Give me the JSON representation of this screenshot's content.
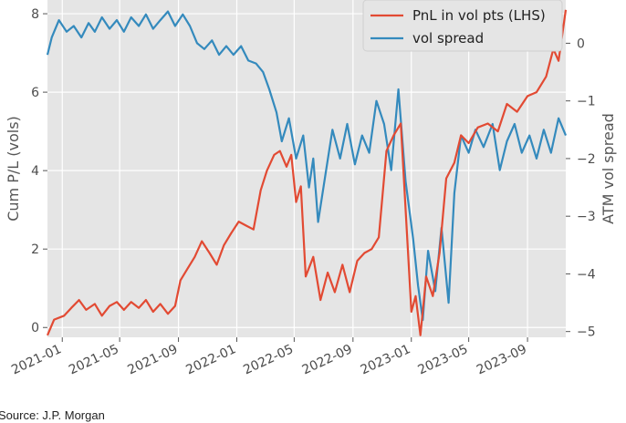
{
  "source": "Source: J.P. Morgan",
  "colors": {
    "pnl": "#e24a33",
    "spread": "#348abd",
    "panel": "#e5e5e5",
    "grid": "#ffffff"
  },
  "chart_data": {
    "type": "line",
    "x_tick_labels": [
      "2021-01",
      "2021-05",
      "2021-09",
      "2022-01",
      "2022-05",
      "2022-09",
      "2023-01",
      "2023-05",
      "2023-09"
    ],
    "x_ticks": [
      "2021-01-01",
      "2021-05-01",
      "2021-09-01",
      "2022-01-01",
      "2022-05-01",
      "2022-09-01",
      "2023-01-01",
      "2023-05-01",
      "2023-09-01"
    ],
    "xlim": [
      "2020-12-01",
      "2023-11-20"
    ],
    "ylabel": "Cum P/L (vols)",
    "ylabel_right": "ATM vol spread",
    "ylim": [
      -0.25,
      8.35
    ],
    "ylim_right": [
      -5.1,
      0.75
    ],
    "yticks": [
      "0",
      "2",
      "4",
      "6",
      "8"
    ],
    "yticks_right": [
      "0",
      "−1",
      "−2",
      "−3",
      "−4",
      "−5"
    ],
    "grid": true,
    "legend_position": "top-right",
    "series": [
      {
        "name": "PnL in vol pts (LHS)",
        "axis": "left",
        "color": "#e24a33",
        "points": [
          [
            "2020-12-01",
            -0.2
          ],
          [
            "2020-12-15",
            0.2
          ],
          [
            "2021-01-05",
            0.3
          ],
          [
            "2021-01-20",
            0.5
          ],
          [
            "2021-02-05",
            0.7
          ],
          [
            "2021-02-20",
            0.45
          ],
          [
            "2021-03-10",
            0.6
          ],
          [
            "2021-03-25",
            0.3
          ],
          [
            "2021-04-10",
            0.55
          ],
          [
            "2021-04-25",
            0.65
          ],
          [
            "2021-05-10",
            0.45
          ],
          [
            "2021-05-25",
            0.65
          ],
          [
            "2021-06-10",
            0.5
          ],
          [
            "2021-06-25",
            0.7
          ],
          [
            "2021-07-10",
            0.4
          ],
          [
            "2021-07-25",
            0.6
          ],
          [
            "2021-08-10",
            0.35
          ],
          [
            "2021-08-25",
            0.55
          ],
          [
            "2021-09-05",
            1.2
          ],
          [
            "2021-09-20",
            1.5
          ],
          [
            "2021-10-05",
            1.8
          ],
          [
            "2021-10-20",
            2.2
          ],
          [
            "2021-11-05",
            1.9
          ],
          [
            "2021-11-20",
            1.6
          ],
          [
            "2021-12-05",
            2.1
          ],
          [
            "2021-12-20",
            2.4
          ],
          [
            "2022-01-05",
            2.7
          ],
          [
            "2022-01-20",
            2.6
          ],
          [
            "2022-02-05",
            2.5
          ],
          [
            "2022-02-20",
            3.5
          ],
          [
            "2022-03-05",
            4.0
          ],
          [
            "2022-03-20",
            4.4
          ],
          [
            "2022-04-01",
            4.5
          ],
          [
            "2022-04-15",
            4.1
          ],
          [
            "2022-04-25",
            4.4
          ],
          [
            "2022-05-05",
            3.2
          ],
          [
            "2022-05-15",
            3.6
          ],
          [
            "2022-05-25",
            1.3
          ],
          [
            "2022-06-10",
            1.8
          ],
          [
            "2022-06-25",
            0.7
          ],
          [
            "2022-07-10",
            1.4
          ],
          [
            "2022-07-25",
            0.9
          ],
          [
            "2022-08-10",
            1.6
          ],
          [
            "2022-08-25",
            0.9
          ],
          [
            "2022-09-10",
            1.7
          ],
          [
            "2022-09-25",
            1.9
          ],
          [
            "2022-10-10",
            2.0
          ],
          [
            "2022-10-25",
            2.3
          ],
          [
            "2022-11-10",
            4.5
          ],
          [
            "2022-11-25",
            4.9
          ],
          [
            "2022-12-10",
            5.2
          ],
          [
            "2022-12-20",
            3.0
          ],
          [
            "2023-01-01",
            0.4
          ],
          [
            "2023-01-10",
            0.8
          ],
          [
            "2023-01-20",
            -0.2
          ],
          [
            "2023-02-01",
            1.3
          ],
          [
            "2023-02-15",
            0.8
          ],
          [
            "2023-03-01",
            1.9
          ],
          [
            "2023-03-15",
            3.8
          ],
          [
            "2023-04-01",
            4.2
          ],
          [
            "2023-04-15",
            4.9
          ],
          [
            "2023-05-01",
            4.7
          ],
          [
            "2023-05-20",
            5.1
          ],
          [
            "2023-06-10",
            5.2
          ],
          [
            "2023-07-01",
            5.0
          ],
          [
            "2023-07-20",
            5.7
          ],
          [
            "2023-08-10",
            5.5
          ],
          [
            "2023-09-01",
            5.9
          ],
          [
            "2023-09-20",
            6.0
          ],
          [
            "2023-10-10",
            6.4
          ],
          [
            "2023-10-25",
            7.1
          ],
          [
            "2023-11-05",
            6.8
          ],
          [
            "2023-11-20",
            8.1
          ]
        ]
      },
      {
        "name": "vol spread",
        "axis": "right",
        "color": "#348abd",
        "points": [
          [
            "2020-12-01",
            -0.2
          ],
          [
            "2020-12-10",
            0.1
          ],
          [
            "2020-12-25",
            0.4
          ],
          [
            "2021-01-10",
            0.2
          ],
          [
            "2021-01-25",
            0.3
          ],
          [
            "2021-02-10",
            0.1
          ],
          [
            "2021-02-25",
            0.35
          ],
          [
            "2021-03-10",
            0.2
          ],
          [
            "2021-03-25",
            0.45
          ],
          [
            "2021-04-10",
            0.25
          ],
          [
            "2021-04-25",
            0.4
          ],
          [
            "2021-05-10",
            0.2
          ],
          [
            "2021-05-25",
            0.45
          ],
          [
            "2021-06-10",
            0.3
          ],
          [
            "2021-06-25",
            0.5
          ],
          [
            "2021-07-10",
            0.25
          ],
          [
            "2021-07-25",
            0.4
          ],
          [
            "2021-08-10",
            0.55
          ],
          [
            "2021-08-25",
            0.3
          ],
          [
            "2021-09-10",
            0.5
          ],
          [
            "2021-09-25",
            0.3
          ],
          [
            "2021-10-10",
            0.0
          ],
          [
            "2021-10-25",
            -0.1
          ],
          [
            "2021-11-10",
            0.05
          ],
          [
            "2021-11-25",
            -0.2
          ],
          [
            "2021-12-10",
            -0.05
          ],
          [
            "2021-12-25",
            -0.2
          ],
          [
            "2022-01-10",
            -0.05
          ],
          [
            "2022-01-25",
            -0.3
          ],
          [
            "2022-02-10",
            -0.35
          ],
          [
            "2022-02-25",
            -0.5
          ],
          [
            "2022-03-10",
            -0.8
          ],
          [
            "2022-03-25",
            -1.2
          ],
          [
            "2022-04-05",
            -1.7
          ],
          [
            "2022-04-20",
            -1.3
          ],
          [
            "2022-05-05",
            -2.0
          ],
          [
            "2022-05-20",
            -1.6
          ],
          [
            "2022-06-01",
            -2.5
          ],
          [
            "2022-06-10",
            -2.0
          ],
          [
            "2022-06-20",
            -3.1
          ],
          [
            "2022-07-05",
            -2.3
          ],
          [
            "2022-07-20",
            -1.5
          ],
          [
            "2022-08-05",
            -2.0
          ],
          [
            "2022-08-20",
            -1.4
          ],
          [
            "2022-09-05",
            -2.1
          ],
          [
            "2022-09-20",
            -1.6
          ],
          [
            "2022-10-05",
            -1.9
          ],
          [
            "2022-10-20",
            -1.0
          ],
          [
            "2022-11-05",
            -1.4
          ],
          [
            "2022-11-20",
            -2.2
          ],
          [
            "2022-12-05",
            -0.8
          ],
          [
            "2022-12-20",
            -2.4
          ],
          [
            "2023-01-05",
            -3.4
          ],
          [
            "2023-01-15",
            -4.2
          ],
          [
            "2023-01-25",
            -4.8
          ],
          [
            "2023-02-05",
            -3.6
          ],
          [
            "2023-02-20",
            -4.3
          ],
          [
            "2023-03-05",
            -3.2
          ],
          [
            "2023-03-20",
            -4.5
          ],
          [
            "2023-04-01",
            -2.6
          ],
          [
            "2023-04-15",
            -1.6
          ],
          [
            "2023-05-01",
            -1.9
          ],
          [
            "2023-05-15",
            -1.5
          ],
          [
            "2023-06-01",
            -1.8
          ],
          [
            "2023-06-20",
            -1.4
          ],
          [
            "2023-07-05",
            -2.2
          ],
          [
            "2023-07-20",
            -1.7
          ],
          [
            "2023-08-05",
            -1.4
          ],
          [
            "2023-08-20",
            -1.9
          ],
          [
            "2023-09-05",
            -1.6
          ],
          [
            "2023-09-20",
            -2.0
          ],
          [
            "2023-10-05",
            -1.5
          ],
          [
            "2023-10-20",
            -1.9
          ],
          [
            "2023-11-05",
            -1.3
          ],
          [
            "2023-11-20",
            -1.6
          ]
        ]
      }
    ]
  }
}
